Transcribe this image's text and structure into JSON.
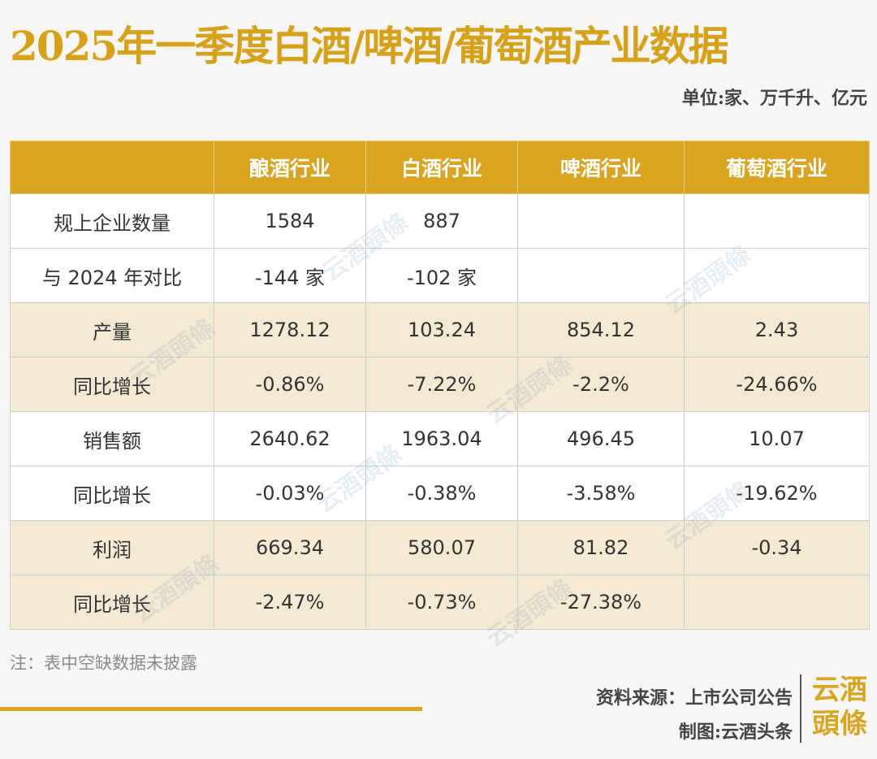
{
  "title": "2025年一季度白酒/啤酒/葡萄酒产业数据",
  "unit": "单位:家、万千升、亿元",
  "table": {
    "headers": [
      "",
      "酿酒行业",
      "白酒行业",
      "啤酒行业",
      "葡萄酒行业"
    ],
    "rows": [
      {
        "label": "规上企业数量",
        "cells": [
          "1584",
          "887",
          "",
          ""
        ]
      },
      {
        "label": "与 2024 年对比",
        "cells": [
          "-144 家",
          "-102 家",
          "",
          ""
        ]
      },
      {
        "label": "产量",
        "cells": [
          "1278.12",
          "103.24",
          "854.12",
          "2.43"
        ]
      },
      {
        "label": "同比增长",
        "cells": [
          "-0.86%",
          "-7.22%",
          "-2.2%",
          "-24.66%"
        ]
      },
      {
        "label": "销售额",
        "cells": [
          "2640.62",
          "1963.04",
          "496.45",
          "10.07"
        ]
      },
      {
        "label": "同比增长",
        "cells": [
          "-0.03%",
          "-0.38%",
          "-3.58%",
          "-19.62%"
        ]
      },
      {
        "label": "利润",
        "cells": [
          "669.34",
          "580.07",
          "81.82",
          "-0.34"
        ]
      },
      {
        "label": "同比增长",
        "cells": [
          "-2.47%",
          "-0.73%",
          "-27.38%",
          ""
        ]
      }
    ]
  },
  "watermark_text": "云酒頭條",
  "note": "注：表中空缺数据未披露",
  "source": "资料来源：上市公司公告",
  "made_by": "制图:云酒头条",
  "logo": {
    "line1": "云酒",
    "line2": "頭條"
  },
  "colors": {
    "accent": "#d9a420",
    "tint_row": "#f4ead3"
  }
}
